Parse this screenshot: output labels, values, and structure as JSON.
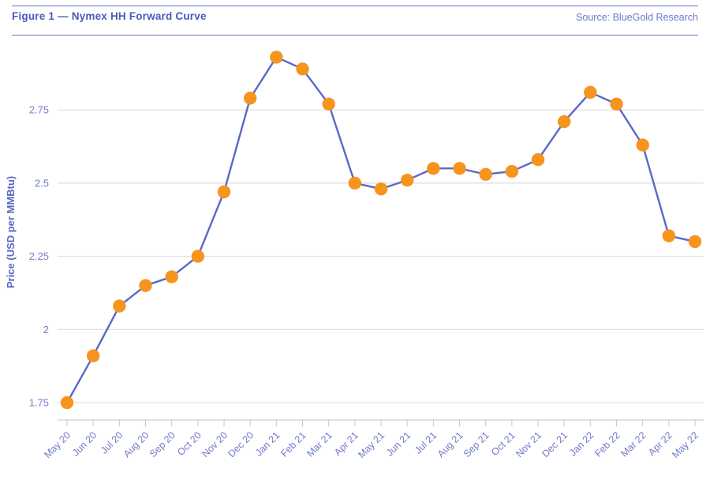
{
  "header": {
    "figure_label": "Figure 1 — Nymex HH Forward Curve",
    "source": "Source: BlueGold Research"
  },
  "chart_data": {
    "type": "line",
    "title": "Nymex HH Forward Curve",
    "categories": [
      "May 20",
      "Jun 20",
      "Jul 20",
      "Aug 20",
      "Sep 20",
      "Oct 20",
      "Nov 20",
      "Dec 20",
      "Jan 21",
      "Feb 21",
      "Mar 21",
      "Apr 21",
      "May 21",
      "Jun 21",
      "Jul 21",
      "Aug 21",
      "Sep 21",
      "Oct 21",
      "Nov 21",
      "Dec 21",
      "Jan 22",
      "Feb 22",
      "Mar 22",
      "Apr 22",
      "May 22"
    ],
    "series": [
      {
        "name": "Nymex HH Forward Curve",
        "values": [
          1.75,
          1.91,
          2.08,
          2.15,
          2.18,
          2.25,
          2.47,
          2.79,
          2.93,
          2.89,
          2.77,
          2.5,
          2.48,
          2.51,
          2.55,
          2.55,
          2.53,
          2.54,
          2.58,
          2.71,
          2.81,
          2.77,
          2.63,
          2.32,
          2.3
        ]
      }
    ],
    "xlabel": "",
    "ylabel": "Price (USD per MMBtu)",
    "yticks": [
      1.75,
      2,
      2.25,
      2.5,
      2.75
    ],
    "ylim": [
      1.69,
      2.96
    ],
    "grid": "horizontal",
    "legend": "none",
    "marker_style": "filled-circle",
    "colors": {
      "line": "#5a68c8",
      "marker": "#f7941e",
      "grid": "#d9d9d9",
      "axis": "#c6c6c6",
      "tick_text": "#717cc8",
      "title_text": "#4a59ba",
      "source_text": "#6d78ce",
      "rule": "#6b74c6"
    }
  }
}
